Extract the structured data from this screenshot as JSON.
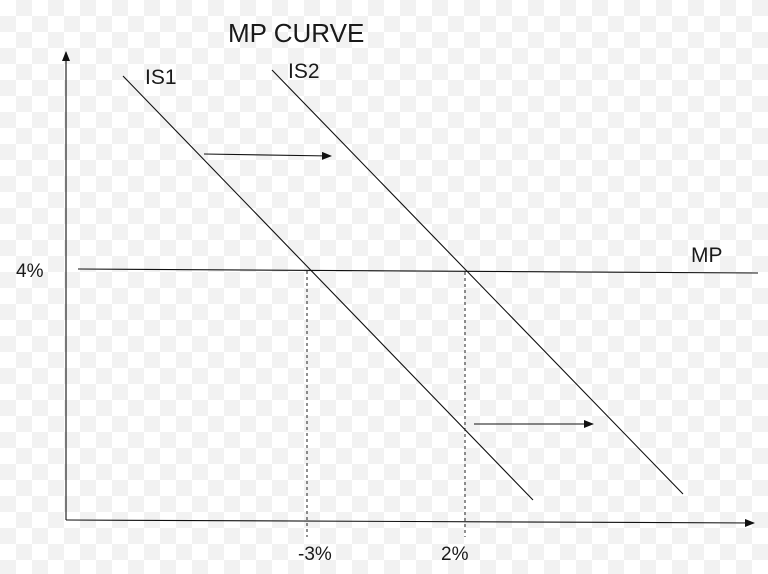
{
  "diagram": {
    "title": "MP CURVE",
    "curves": {
      "is1_label": "IS1",
      "is2_label": "IS2",
      "mp_label": "MP"
    },
    "y_axis": {
      "tick_label": "4%"
    },
    "x_axis": {
      "tick_labels": [
        "-3%",
        "2%"
      ]
    },
    "shift_arrows": [
      "upper shift arrow IS1 to IS2",
      "lower shift arrow IS1 to IS2"
    ]
  }
}
